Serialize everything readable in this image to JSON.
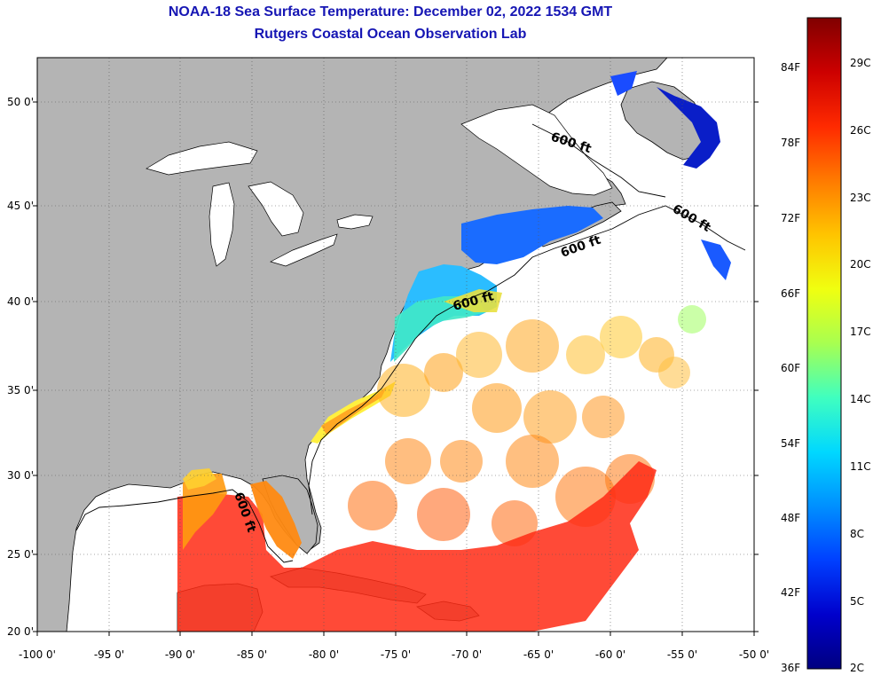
{
  "title_line1": "NOAA-18 Sea Surface Temperature:  December 02, 2022 1534 GMT",
  "title_line2": "Rutgers Coastal Ocean Observation Lab",
  "map": {
    "lon_ticks": [
      "-100 0'",
      "-95 0'",
      "-90 0'",
      "-85 0'",
      "-80 0'",
      "-75 0'",
      "-70 0'",
      "-65 0'",
      "-60 0'",
      "-55 0'",
      "-50 0'"
    ],
    "lat_ticks": [
      "50 0'",
      "45 0'",
      "40 0'",
      "35 0'",
      "30 0'",
      "25 0'",
      "20 0'"
    ],
    "contour_label": "600 ft",
    "colors": {
      "land": "#b4b4b4",
      "no_data": "#ffffff"
    }
  },
  "colorbar": {
    "fahrenheit_labels": [
      "84F",
      "78F",
      "72F",
      "66F",
      "60F",
      "54F",
      "48F",
      "42F",
      "36F"
    ],
    "celsius_labels": [
      "29C",
      "26C",
      "23C",
      "20C",
      "17C",
      "14C",
      "11C",
      "8C",
      "5C",
      "2C"
    ],
    "gradient": [
      "#800000",
      "#cc0000",
      "#ff2a00",
      "#ff7a00",
      "#ffc400",
      "#f0ff10",
      "#a8ff50",
      "#40ffbf",
      "#00d8ff",
      "#0090ff",
      "#0040ff",
      "#0000cc",
      "#000080"
    ]
  }
}
